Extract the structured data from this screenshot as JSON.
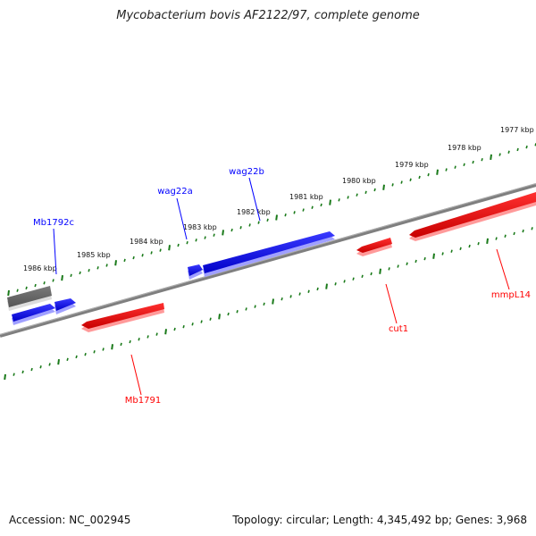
{
  "header": {
    "title": "Mycobacterium bovis AF2122/97, complete genome"
  },
  "footer": {
    "accession": "Accession: NC_002945",
    "summary": "Topology: circular; Length: 4,345,492 bp; Genes: 3,968"
  },
  "colors": {
    "forward": "#0000ff",
    "reverse": "#ff0000",
    "other": "#666666",
    "ticks": "#1a7a1a",
    "backbone": "#808080"
  },
  "scale_labels": [
    {
      "text": "1986 kbp"
    },
    {
      "text": "1985 kbp"
    },
    {
      "text": "1984 kbp"
    },
    {
      "text": "1983 kbp"
    },
    {
      "text": "1982 kbp"
    },
    {
      "text": "1981 kbp"
    },
    {
      "text": "1980 kbp"
    },
    {
      "text": "1979 kbp"
    },
    {
      "text": "1978 kbp"
    },
    {
      "text": "1977 kbp"
    }
  ],
  "genes": [
    {
      "name": "Mb1792c",
      "color": "#0000ff"
    },
    {
      "name": "wag22a",
      "color": "#0000ff"
    },
    {
      "name": "wag22b",
      "color": "#0000ff"
    },
    {
      "name": "Mb1791",
      "color": "#ff0000"
    },
    {
      "name": "cut1",
      "color": "#ff0000"
    },
    {
      "name": "mmpL14",
      "color": "#ff0000"
    }
  ]
}
